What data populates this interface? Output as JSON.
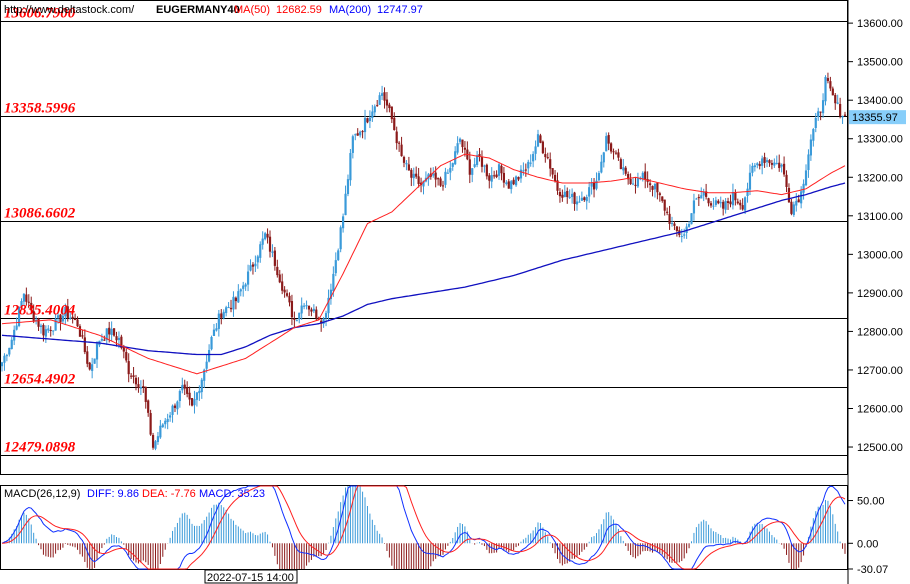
{
  "header": {
    "url": "http://www.deltastock.com/",
    "symbol": "EUGERMANY40",
    "ma50_label": "MA(50)",
    "ma50_value": "12682.59",
    "ma200_label": "MA(200)",
    "ma200_value": "12747.97"
  },
  "colors": {
    "up_candle": "#3a9ad9",
    "down_candle": "#8b1a1a",
    "ma50": "#ff2020",
    "ma200": "#1010c0",
    "level_text": "#ff0000",
    "price_tag": "#87cefa"
  },
  "chart_data": [
    {
      "type": "candlestick",
      "symbol": "EUGERMANY40",
      "ylim": [
        12430,
        13660
      ],
      "y_ticks": [
        "13600.00",
        "13500.00",
        "13400.00",
        "13300.00",
        "13200.00",
        "13100.00",
        "13000.00",
        "12900.00",
        "12800.00",
        "12700.00",
        "12600.00",
        "12500.00"
      ],
      "y_tick_values": [
        13600,
        13500,
        13400,
        13300,
        13200,
        13100,
        13000,
        12900,
        12800,
        12700,
        12600,
        12500
      ],
      "current_price": "13355.97",
      "current_price_value": 13355.97,
      "levels": [
        {
          "label": "13606.7900",
          "value": 13606.79
        },
        {
          "label": "13358.5996",
          "value": 13358.5996
        },
        {
          "label": "13086.6602",
          "value": 13086.6602
        },
        {
          "label": "12835.4004",
          "value": 12835.4004
        },
        {
          "label": "12654.4902",
          "value": 12654.4902
        },
        {
          "label": "12479.0898",
          "value": 12479.0898
        }
      ],
      "price_keypoints": [
        [
          0,
          12720
        ],
        [
          4,
          12780
        ],
        [
          9,
          12900
        ],
        [
          12,
          12850
        ],
        [
          17,
          12800
        ],
        [
          22,
          12820
        ],
        [
          26,
          12850
        ],
        [
          31,
          12820
        ],
        [
          36,
          12700
        ],
        [
          40,
          12780
        ],
        [
          44,
          12800
        ],
        [
          48,
          12780
        ],
        [
          52,
          12700
        ],
        [
          58,
          12650
        ],
        [
          62,
          12500
        ],
        [
          66,
          12560
        ],
        [
          70,
          12600
        ],
        [
          74,
          12650
        ],
        [
          78,
          12600
        ],
        [
          82,
          12680
        ],
        [
          86,
          12780
        ],
        [
          90,
          12850
        ],
        [
          96,
          12880
        ],
        [
          102,
          12960
        ],
        [
          108,
          13050
        ],
        [
          112,
          12980
        ],
        [
          116,
          12900
        ],
        [
          120,
          12830
        ],
        [
          124,
          12880
        ],
        [
          128,
          12850
        ],
        [
          132,
          12830
        ],
        [
          136,
          12950
        ],
        [
          140,
          13100
        ],
        [
          144,
          13300
        ],
        [
          148,
          13330
        ],
        [
          152,
          13380
        ],
        [
          156,
          13420
        ],
        [
          160,
          13350
        ],
        [
          164,
          13250
        ],
        [
          168,
          13200
        ],
        [
          172,
          13180
        ],
        [
          176,
          13200
        ],
        [
          180,
          13180
        ],
        [
          184,
          13220
        ],
        [
          188,
          13300
        ],
        [
          192,
          13220
        ],
        [
          196,
          13250
        ],
        [
          200,
          13200
        ],
        [
          204,
          13220
        ],
        [
          208,
          13180
        ],
        [
          212,
          13200
        ],
        [
          216,
          13230
        ],
        [
          220,
          13300
        ],
        [
          224,
          13250
        ],
        [
          228,
          13170
        ],
        [
          232,
          13150
        ],
        [
          236,
          13140
        ],
        [
          240,
          13160
        ],
        [
          244,
          13190
        ],
        [
          248,
          13300
        ],
        [
          252,
          13250
        ],
        [
          256,
          13200
        ],
        [
          260,
          13190
        ],
        [
          264,
          13200
        ],
        [
          268,
          13170
        ],
        [
          272,
          13120
        ],
        [
          276,
          13060
        ],
        [
          280,
          13050
        ],
        [
          284,
          13130
        ],
        [
          288,
          13160
        ],
        [
          292,
          13130
        ],
        [
          296,
          13120
        ],
        [
          300,
          13150
        ],
        [
          304,
          13130
        ],
        [
          308,
          13220
        ],
        [
          312,
          13250
        ],
        [
          316,
          13240
        ],
        [
          320,
          13230
        ],
        [
          324,
          13120
        ],
        [
          328,
          13160
        ],
        [
          332,
          13300
        ],
        [
          336,
          13380
        ],
        [
          338,
          13450
        ],
        [
          342,
          13390
        ],
        [
          346,
          13356
        ]
      ],
      "ma50_keypoints": [
        [
          0,
          12820
        ],
        [
          20,
          12830
        ],
        [
          40,
          12790
        ],
        [
          60,
          12730
        ],
        [
          80,
          12690
        ],
        [
          100,
          12730
        ],
        [
          120,
          12810
        ],
        [
          130,
          12830
        ],
        [
          140,
          12950
        ],
        [
          150,
          13080
        ],
        [
          160,
          13110
        ],
        [
          170,
          13170
        ],
        [
          180,
          13230
        ],
        [
          190,
          13260
        ],
        [
          200,
          13250
        ],
        [
          210,
          13220
        ],
        [
          220,
          13200
        ],
        [
          230,
          13185
        ],
        [
          240,
          13185
        ],
        [
          250,
          13190
        ],
        [
          260,
          13200
        ],
        [
          270,
          13185
        ],
        [
          280,
          13170
        ],
        [
          290,
          13160
        ],
        [
          300,
          13160
        ],
        [
          310,
          13165
        ],
        [
          320,
          13155
        ],
        [
          330,
          13170
        ],
        [
          340,
          13210
        ],
        [
          346,
          13230
        ]
      ],
      "ma200_keypoints": [
        [
          0,
          12790
        ],
        [
          20,
          12780
        ],
        [
          40,
          12770
        ],
        [
          60,
          12750
        ],
        [
          80,
          12740
        ],
        [
          90,
          12740
        ],
        [
          100,
          12760
        ],
        [
          110,
          12790
        ],
        [
          120,
          12810
        ],
        [
          130,
          12820
        ],
        [
          140,
          12840
        ],
        [
          150,
          12870
        ],
        [
          160,
          12885
        ],
        [
          170,
          12895
        ],
        [
          180,
          12905
        ],
        [
          190,
          12915
        ],
        [
          200,
          12930
        ],
        [
          210,
          12945
        ],
        [
          220,
          12965
        ],
        [
          230,
          12985
        ],
        [
          240,
          13000
        ],
        [
          250,
          13015
        ],
        [
          260,
          13030
        ],
        [
          270,
          13045
        ],
        [
          280,
          13060
        ],
        [
          290,
          13080
        ],
        [
          300,
          13100
        ],
        [
          310,
          13120
        ],
        [
          320,
          13140
        ],
        [
          330,
          13155
        ],
        [
          340,
          13175
        ],
        [
          346,
          13185
        ]
      ]
    },
    {
      "type": "macd",
      "title": "MACD(26,12,9)",
      "diff_label": "DIFF: 9.86",
      "dea_label": "DEA: -7.76",
      "macd_label": "MACD: 35.23",
      "ylim": [
        -30.07,
        67
      ],
      "y_ticks": [
        "50.00",
        "0.00",
        "-30.07"
      ],
      "y_tick_values": [
        50,
        0,
        -30.07
      ]
    }
  ],
  "time_label": "2022-07-15 14:00"
}
